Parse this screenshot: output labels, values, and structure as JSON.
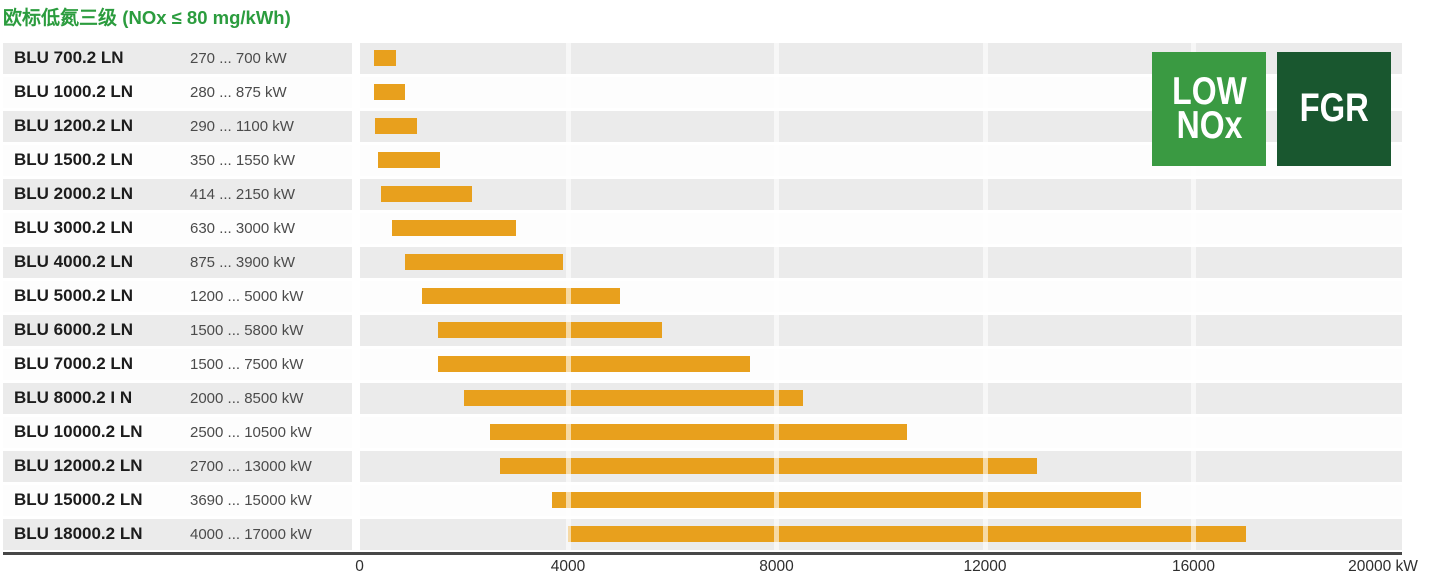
{
  "title": {
    "cn": "欧标低氮三级",
    "note": "(NOx ≤ 80 mg/kWh)",
    "color": "#2B9C3E"
  },
  "badges": [
    {
      "id": "low-nox",
      "lines": [
        "LOW",
        "NOx"
      ],
      "bg": "#3A9A42"
    },
    {
      "id": "fgr",
      "lines": [
        "FGR"
      ],
      "bg": "#19572F"
    }
  ],
  "colors": {
    "bar": "#E8A01D",
    "band_gray": "#EBEBEB",
    "axis": "#474747",
    "title_green": "#2B9C3E"
  },
  "chart_data": {
    "type": "bar",
    "orientation": "horizontal-range",
    "title": "欧标低氮三级 (NOx ≤ 80 mg/kWh)",
    "unit": "kW",
    "xlabel": "kW",
    "xlim": [
      0,
      20000
    ],
    "grid": "vertical-separators-at-ticks",
    "bar_color": "#E8A01D",
    "categories": [
      "BLU 700.2 LN",
      "BLU 1000.2 LN",
      "BLU 1200.2 LN",
      "BLU 1500.2 LN",
      "BLU 2000.2 LN",
      "BLU 3000.2 LN",
      "BLU 4000.2 LN",
      "BLU 5000.2 LN",
      "BLU 6000.2 LN",
      "BLU 7000.2 LN",
      "BLU 8000.2 I N",
      "BLU 10000.2 LN",
      "BLU 12000.2 LN",
      "BLU 15000.2 LN",
      "BLU 18000.2 LN"
    ],
    "range_labels": [
      "270 ... 700 kW",
      "280 ... 875 kW",
      "290 ... 1100 kW",
      "350 ... 1550 kW",
      "414 ... 2150 kW",
      "630 ... 3000 kW",
      "875 ... 3900 kW",
      "1200 ... 5000 kW",
      "1500 ... 5800 kW",
      "1500 ... 7500 kW",
      "2000 ... 8500 kW",
      "2500 ... 10500 kW",
      "2700 ... 13000 kW",
      "3690 ... 15000 kW",
      "4000 ... 17000 kW"
    ],
    "series": [
      {
        "name": "power-range",
        "ranges": [
          [
            270,
            700
          ],
          [
            280,
            875
          ],
          [
            290,
            1100
          ],
          [
            350,
            1550
          ],
          [
            414,
            2150
          ],
          [
            630,
            3000
          ],
          [
            875,
            3900
          ],
          [
            1200,
            5000
          ],
          [
            1500,
            5800
          ],
          [
            1500,
            7500
          ],
          [
            2000,
            8500
          ],
          [
            2500,
            10500
          ],
          [
            2700,
            13000
          ],
          [
            3690,
            15000
          ],
          [
            4000,
            17000
          ]
        ]
      }
    ],
    "x_ticks": [
      0,
      4000,
      8000,
      12000,
      16000,
      20000
    ],
    "x_tick_labels": [
      "0",
      "4000",
      "8000",
      "12000",
      "16000",
      "20000 kW"
    ]
  }
}
